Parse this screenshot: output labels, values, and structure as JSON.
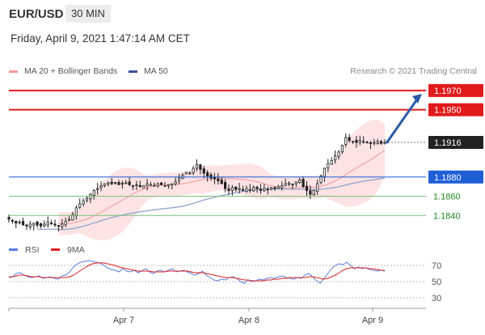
{
  "header": {
    "symbol": "EUR/USD",
    "timeframe": "30 MIN",
    "datetime": "Friday, April 9, 2021 1:47:14 AM CET"
  },
  "legend": {
    "ma20": "MA 20 + Bollinger Bands",
    "ma50": "MA 50",
    "copyright": "Research © 2021 Trading Central",
    "rsi": "RSI",
    "ma9": "9MA"
  },
  "colors": {
    "red": "#e11b1b",
    "blue": "#1f5fd6",
    "green": "#7cc07c",
    "bollinger_fill": "#fde3e3",
    "ma20": "#f29a9a",
    "ma50": "#8fa4cc",
    "candle": "#222222",
    "rsi_line": "#5b7fe0",
    "rsi_ma": "#e02020",
    "arrow": "#2b5ba8"
  },
  "chart_data": [
    {
      "type": "candlestick",
      "title": "EUR/USD",
      "timeframe": "30 MIN",
      "x_tick_labels": [
        "Apr 7",
        "Apr 8",
        "Apr 9"
      ],
      "ylim": [
        1.182,
        1.198
      ],
      "current_price": 1.1916,
      "levels": [
        {
          "value": 1.197,
          "label": "1.1970",
          "style": "resistance",
          "color": "red"
        },
        {
          "value": 1.195,
          "label": "1.1950",
          "style": "resistance",
          "color": "red"
        },
        {
          "value": 1.1916,
          "label": "1.1916",
          "style": "last",
          "color": "dark"
        },
        {
          "value": 1.188,
          "label": "1.1880",
          "style": "pivot",
          "color": "blue"
        },
        {
          "value": 1.186,
          "label": "1.1860",
          "style": "support",
          "color": "green"
        },
        {
          "value": 1.184,
          "label": "1.1840",
          "style": "support",
          "color": "green"
        }
      ],
      "close_series": [
        1.1836,
        1.1834,
        1.1832,
        1.1833,
        1.183,
        1.1829,
        1.1831,
        1.1832,
        1.183,
        1.1829,
        1.1831,
        1.1833,
        1.1832,
        1.183,
        1.1829,
        1.1831,
        1.1834,
        1.1836,
        1.1841,
        1.1848,
        1.1852,
        1.1855,
        1.1858,
        1.1862,
        1.1866,
        1.1868,
        1.1871,
        1.1873,
        1.1874,
        1.1873,
        1.1874,
        1.1872,
        1.1873,
        1.1874,
        1.1872,
        1.1871,
        1.1872,
        1.187,
        1.1871,
        1.1873,
        1.1872,
        1.1871,
        1.1873,
        1.1872,
        1.1871,
        1.1872,
        1.1873,
        1.1875,
        1.1879,
        1.1882,
        1.1885,
        1.1884,
        1.1889,
        1.1893,
        1.1888,
        1.1884,
        1.1881,
        1.1879,
        1.1878,
        1.1876,
        1.1873,
        1.1868,
        1.1866,
        1.1869,
        1.1867,
        1.1868,
        1.1866,
        1.1868,
        1.1867,
        1.1869,
        1.1868,
        1.1866,
        1.1868,
        1.1867,
        1.1869,
        1.1868,
        1.187,
        1.1871,
        1.1873,
        1.1874,
        1.1872,
        1.1875,
        1.1877,
        1.187,
        1.1866,
        1.1862,
        1.1866,
        1.1873,
        1.1881,
        1.1889,
        1.1894,
        1.1897,
        1.1902,
        1.1906,
        1.1913,
        1.1921,
        1.1918,
        1.1917,
        1.1916,
        1.1918,
        1.1917,
        1.1916,
        1.1915,
        1.1916,
        1.1917,
        1.1915,
        1.1916
      ],
      "series": [
        {
          "name": "MA 20 + Bollinger Bands",
          "role": "ma20"
        },
        {
          "name": "MA 50",
          "role": "ma50"
        }
      ]
    },
    {
      "type": "line",
      "title": "RSI",
      "ylim": [
        20,
        80
      ],
      "y_tick_labels": [
        "70",
        "50",
        "30"
      ],
      "y_ticks": [
        70,
        50,
        30
      ],
      "series": [
        {
          "name": "RSI",
          "values": [
            55,
            56,
            60,
            61,
            58,
            56,
            55,
            56,
            57,
            54,
            55,
            56,
            54,
            53,
            57,
            58,
            62,
            68,
            72,
            74,
            75,
            76,
            75,
            74,
            73,
            70,
            67,
            65,
            64,
            62,
            66,
            63,
            62,
            64,
            61,
            63,
            66,
            62,
            60,
            63,
            64,
            62,
            64,
            66,
            62,
            63,
            64,
            62,
            60,
            58,
            60,
            63,
            58,
            55,
            52,
            51,
            53,
            52,
            55,
            56,
            54,
            50,
            48,
            52,
            50,
            51,
            53,
            52,
            54,
            55,
            54,
            56,
            57,
            55,
            54,
            53,
            55,
            54,
            58,
            60,
            56,
            51,
            48,
            54,
            60,
            66,
            70,
            72,
            71,
            74,
            70,
            66,
            68,
            66,
            67,
            65,
            64,
            63,
            64,
            63
          ]
        },
        {
          "name": "9MA",
          "values": [
            56,
            56,
            57,
            58,
            58,
            57,
            56,
            56,
            56,
            55,
            55,
            55,
            55,
            55,
            55,
            55,
            56,
            58,
            61,
            64,
            67,
            70,
            72,
            73,
            73,
            73,
            72,
            71,
            70,
            68,
            67,
            66,
            65,
            64,
            63,
            63,
            63,
            63,
            62,
            62,
            62,
            62,
            63,
            63,
            63,
            63,
            63,
            63,
            62,
            61,
            61,
            61,
            60,
            59,
            58,
            57,
            56,
            55,
            55,
            55,
            54,
            53,
            52,
            52,
            51,
            51,
            51,
            51,
            52,
            52,
            53,
            53,
            54,
            54,
            55,
            55,
            55,
            55,
            55,
            56,
            56,
            55,
            54,
            53,
            54,
            56,
            58,
            61,
            64,
            66,
            67,
            67,
            67,
            67,
            67,
            66,
            66,
            65,
            64,
            64
          ]
        }
      ]
    }
  ]
}
